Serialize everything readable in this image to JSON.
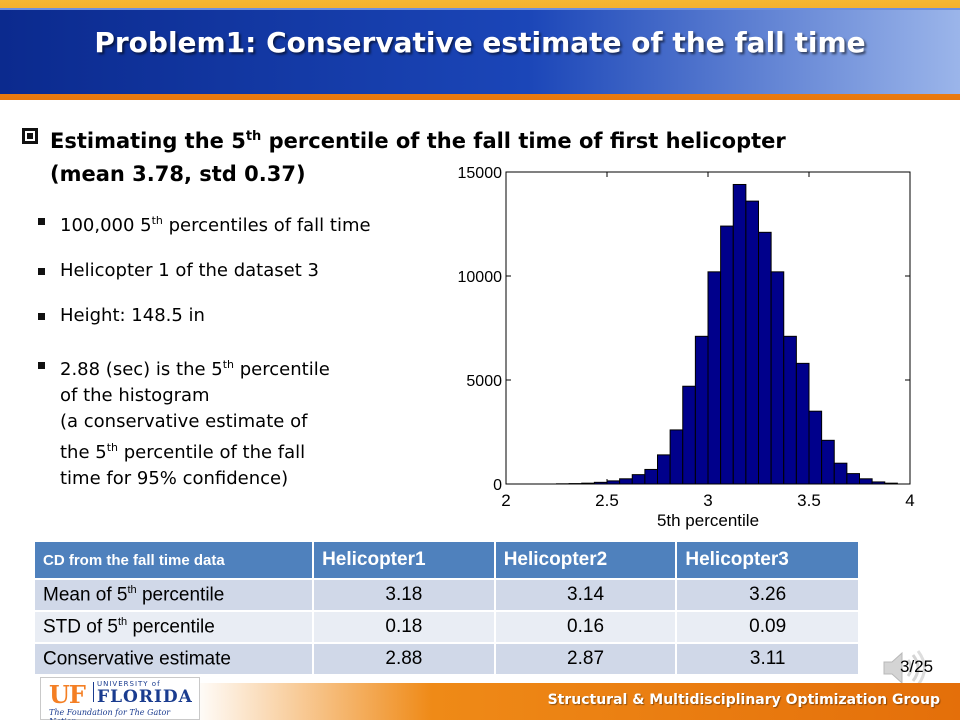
{
  "slide": {
    "title": "Problem1: Conservative estimate of the fall time",
    "main_bullet": {
      "part1": "Estimating the 5",
      "sup": "th",
      "part2": " percentile of the fall time of first helicopter",
      "line2": "(mean 3.78, std 0.37)"
    },
    "sub_bullets": [
      {
        "a": "100,000 5",
        "sup": "th",
        "b": " percentiles of fall time"
      },
      {
        "a": "Helicopter 1 of the dataset 3"
      },
      {
        "a": "Height: 148.5 in"
      },
      {
        "a": "2.88 (sec) is the 5",
        "sup": "th",
        "b": " percentile",
        "line2": "of the histogram",
        "line3": "(a conservative estimate of",
        "line4a": "the 5",
        "line4sup": "th",
        "line4b": " percentile of the fall",
        "line5": "time for 95% confidence)"
      }
    ],
    "page_number": "3/25"
  },
  "table": {
    "headers": [
      "CD from the fall time data",
      "Helicopter1",
      "Helicopter2",
      "Helicopter3"
    ],
    "rows": [
      {
        "label_a": "Mean of 5",
        "label_sup": "th",
        "label_b": " percentile",
        "values": [
          "3.18",
          "3.14",
          "3.26"
        ]
      },
      {
        "label_a": "STD of 5",
        "label_sup": "th",
        "label_b": " percentile",
        "values": [
          "0.18",
          "0.16",
          "0.09"
        ]
      },
      {
        "label_a": "Conservative estimate",
        "label_sup": "",
        "label_b": "",
        "values": [
          "2.88",
          "2.87",
          "3.11"
        ]
      }
    ]
  },
  "footer": {
    "text": "Structural & Multidisciplinary Optimization Group",
    "logo": {
      "uf": "UF",
      "university_of": "UNIVERSITY of",
      "florida": "FLORIDA",
      "tagline": "The Foundation for The Gator Nation"
    }
  },
  "chart_data": {
    "type": "bar",
    "xlabel": "5th percentile",
    "ylabel": "",
    "xlim": [
      2,
      4
    ],
    "ylim": [
      0,
      15000
    ],
    "x_ticks": [
      2,
      2.5,
      3,
      3.5,
      4
    ],
    "x_tick_labels": [
      "2",
      "2.5",
      "3",
      "3.5",
      "4"
    ],
    "y_ticks": [
      0,
      5000,
      10000,
      15000
    ],
    "y_tick_labels": [
      "0",
      "5000",
      "10000",
      "15000"
    ],
    "bin_width": 0.0625,
    "bins_start": [
      2.25,
      2.3125,
      2.375,
      2.4375,
      2.5,
      2.5625,
      2.625,
      2.6875,
      2.75,
      2.8125,
      2.875,
      2.9375,
      3.0,
      3.0625,
      3.125,
      3.1875,
      3.25,
      3.3125,
      3.375,
      3.4375,
      3.5,
      3.5625,
      3.625,
      3.6875,
      3.75,
      3.8125,
      3.875
    ],
    "counts": [
      10,
      20,
      40,
      80,
      150,
      250,
      450,
      700,
      1400,
      2600,
      4700,
      7100,
      10200,
      12400,
      14400,
      13600,
      12100,
      10200,
      7100,
      5800,
      3500,
      2100,
      1000,
      500,
      250,
      100,
      40
    ],
    "bar_color": "#00008b",
    "grid": false
  },
  "colors": {
    "title_bar": "#1b46b8",
    "accent_orange": "#f08a16",
    "table_header": "#4f81bd",
    "table_row_odd": "#d0d8e8",
    "table_row_even": "#e9edf4",
    "histogram_bar": "#00008b"
  },
  "icons": {
    "bullet_main": "checkbox-square-icon",
    "bullet_sub": "small-square-icon",
    "audio": "speaker-icon"
  }
}
